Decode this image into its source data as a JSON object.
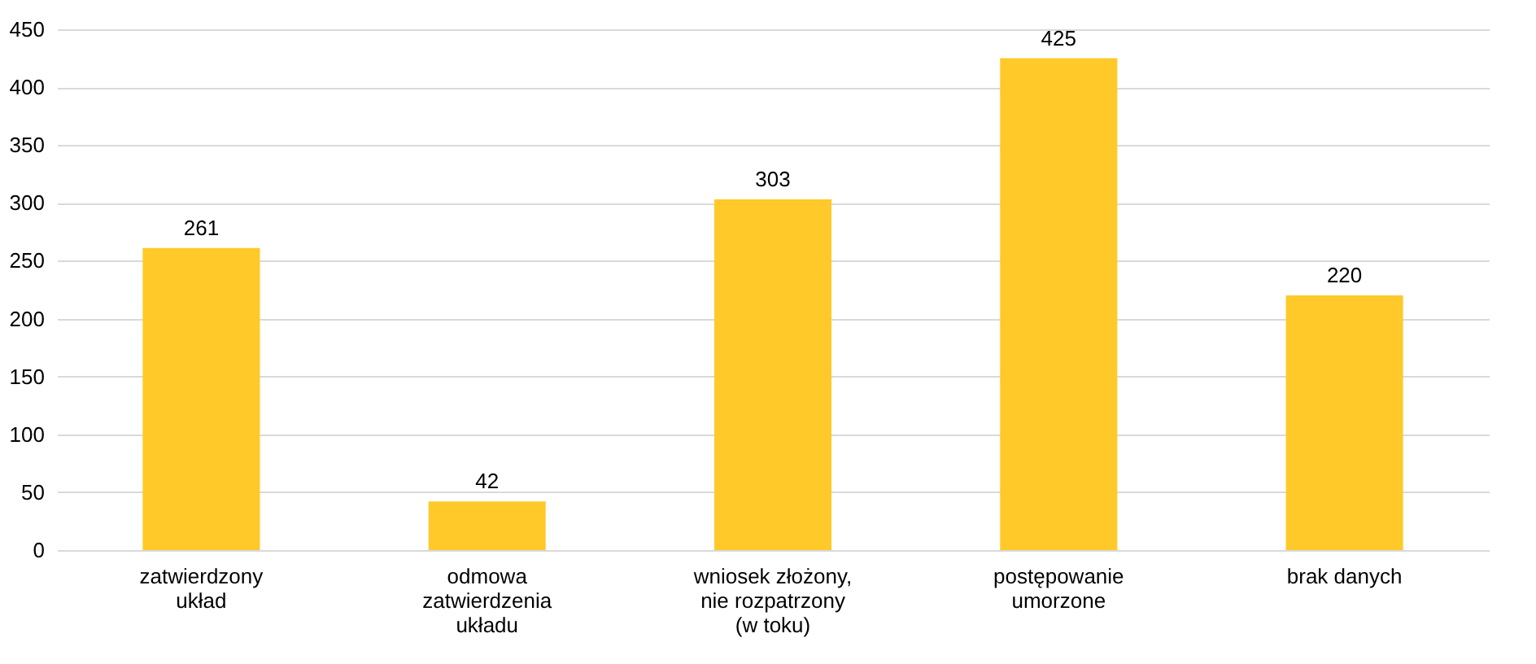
{
  "chart_data": {
    "type": "bar",
    "categories": [
      "zatwierdzony\nukład",
      "odmowa\nzatwierdzenia\nukładu",
      "wniosek złożony,\nnie rozpatrzony\n(w toku)",
      "postępowanie\numorzone",
      "brak danych"
    ],
    "values": [
      261,
      42,
      303,
      425,
      220
    ],
    "color": "#ffc929",
    "ylim": [
      0,
      450
    ],
    "yticks": [
      0,
      50,
      100,
      150,
      200,
      250,
      300,
      350,
      400,
      450
    ],
    "grid": "y",
    "data_labels": true
  }
}
